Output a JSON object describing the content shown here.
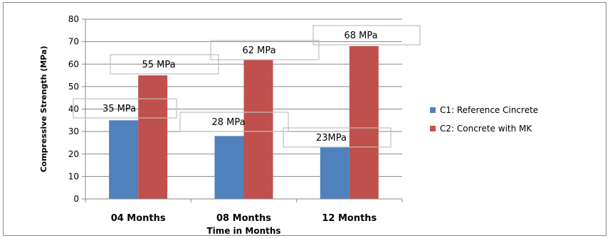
{
  "chart_data": {
    "type": "bar",
    "categories": [
      "04 Months",
      "08 Months",
      "12 Months"
    ],
    "series": [
      {
        "name": "C1: Reference Cincrete",
        "values": [
          35,
          28,
          23
        ],
        "color": "#4f81bd"
      },
      {
        "name": "C2: Concrete with MK",
        "values": [
          55,
          62,
          68
        ],
        "color": "#c0504d"
      }
    ],
    "title": "",
    "xlabel": "Time in Months",
    "ylabel": "Compressive Strength (MPa)",
    "ylim": [
      0,
      80
    ],
    "yticks": [
      0,
      10,
      20,
      30,
      40,
      50,
      60,
      70,
      80
    ],
    "grid": true,
    "legend_position": "right",
    "annotations": [
      {
        "text": "35 MPa",
        "series": 0,
        "category": 0
      },
      {
        "text": "55 MPa",
        "series": 1,
        "category": 0
      },
      {
        "text": "28 MPa",
        "series": 0,
        "category": 1
      },
      {
        "text": "62 MPa",
        "series": 1,
        "category": 1
      },
      {
        "text": "23MPa",
        "series": 0,
        "category": 2
      },
      {
        "text": "68 MPa",
        "series": 1,
        "category": 2
      }
    ]
  }
}
